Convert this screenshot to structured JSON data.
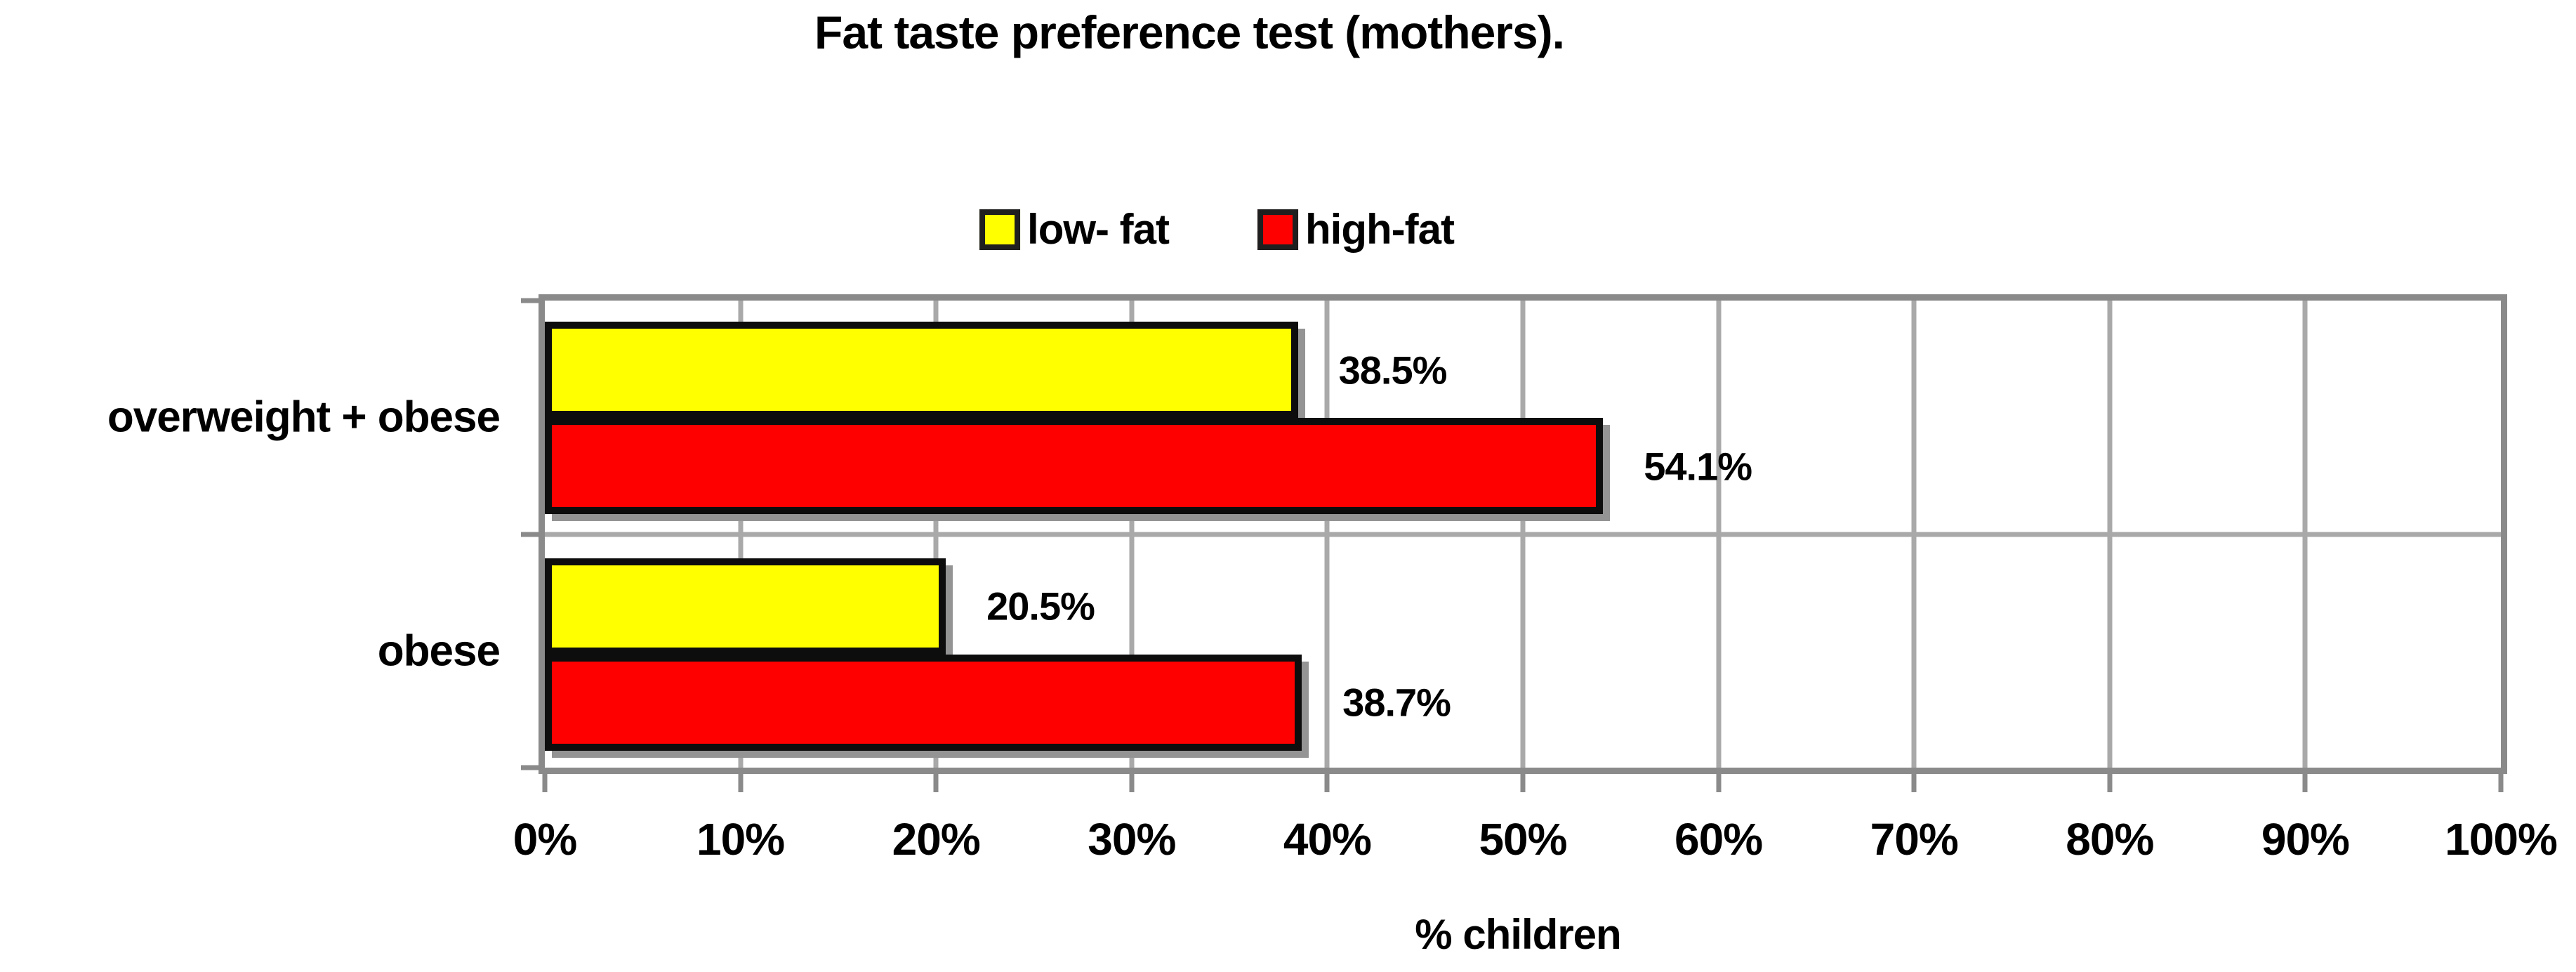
{
  "title": "Fat taste preference test (mothers).",
  "chart_data": {
    "type": "bar",
    "orientation": "horizontal",
    "title": "Fat taste preference test (mothers).",
    "categories": [
      "overweight + obese",
      "obese"
    ],
    "series": [
      {
        "name": "low- fat",
        "color": "#ffff00",
        "values": [
          38.5,
          20.5
        ],
        "labels": [
          "38.5%",
          "20.5%"
        ]
      },
      {
        "name": "high-fat",
        "color": "#ff0000",
        "values": [
          54.1,
          38.7
        ],
        "labels": [
          "54.1%",
          "38.7%"
        ]
      }
    ],
    "xlabel": "% children",
    "xlim": [
      0,
      100
    ],
    "x_ticks": [
      "0%",
      "10%",
      "20%",
      "30%",
      "40%",
      "50%",
      "60%",
      "70%",
      "80%",
      "90%",
      "100%"
    ],
    "grid": true,
    "legend_position": "top-center"
  },
  "colors": {
    "low_fat": "#ffff00",
    "high_fat": "#ff0000",
    "bar_border": "#0d0d0d",
    "bar_shadow": "#949494",
    "frame": "#8a8a8a",
    "gridline": "#a9a9a9",
    "text": "#000000",
    "background": "#ffffff"
  }
}
